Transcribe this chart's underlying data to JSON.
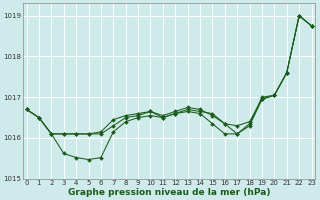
{
  "title": "Graphe pression niveau de la mer (hPa)",
  "background_color": "#ceeaea",
  "grid_color": "#ffffff",
  "line_color": "#1a5c1a",
  "marker_color": "#1a5c1a",
  "x_values": [
    0,
    1,
    2,
    3,
    4,
    5,
    6,
    7,
    8,
    9,
    10,
    11,
    12,
    13,
    14,
    15,
    16,
    17,
    18,
    19,
    20,
    21,
    22,
    23
  ],
  "y_line1": [
    1016.7,
    1016.5,
    1016.1,
    1016.1,
    1016.1,
    1016.1,
    1016.15,
    1016.45,
    1016.55,
    1016.6,
    1016.65,
    1016.5,
    1016.6,
    1016.7,
    1016.65,
    1016.6,
    1016.35,
    1016.3,
    1016.4,
    1016.95,
    1017.05,
    1017.6,
    1019.0,
    1018.75
  ],
  "y_line2": [
    1016.7,
    1016.5,
    1016.1,
    1016.1,
    1016.1,
    1016.1,
    1016.1,
    1016.3,
    1016.5,
    1016.55,
    1016.65,
    1016.55,
    1016.65,
    1016.75,
    1016.7,
    1016.55,
    1016.35,
    1016.1,
    1016.35,
    1017.0,
    1017.05,
    1017.6,
    1019.0,
    1018.75
  ],
  "y_line3": [
    1016.7,
    1016.5,
    1016.1,
    1015.62,
    1015.52,
    1015.47,
    1015.52,
    1016.15,
    1016.4,
    1016.5,
    1016.55,
    1016.5,
    1016.6,
    1016.65,
    1016.6,
    1016.35,
    1016.1,
    1016.1,
    1016.3,
    1016.95,
    1017.05,
    1017.6,
    1019.0,
    1018.75
  ],
  "ylim": [
    1015.0,
    1019.3
  ],
  "yticks": [
    1015,
    1016,
    1017,
    1018,
    1019
  ],
  "xticks": [
    0,
    1,
    2,
    3,
    4,
    5,
    6,
    7,
    8,
    9,
    10,
    11,
    12,
    13,
    14,
    15,
    16,
    17,
    18,
    19,
    20,
    21,
    22,
    23
  ],
  "title_fontsize": 6.5,
  "tick_fontsize": 5.0,
  "xlim": [
    -0.3,
    23.3
  ]
}
